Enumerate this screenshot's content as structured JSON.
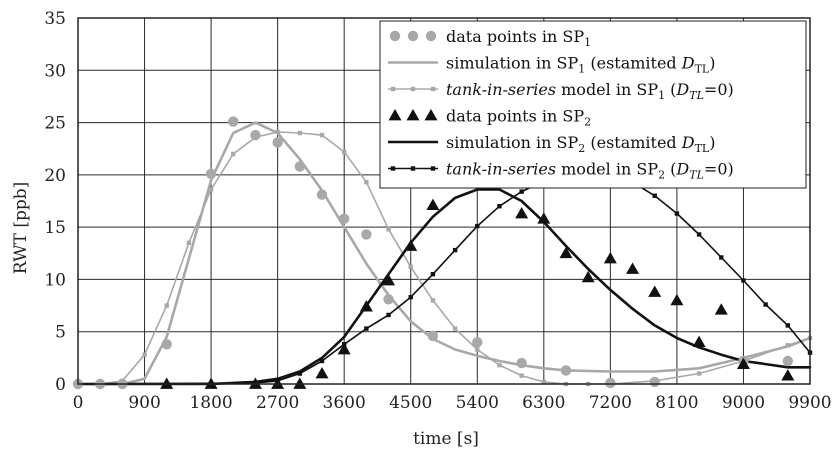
{
  "chart_data": {
    "type": "line",
    "xlabel": "time [s]",
    "ylabel": "RWT [ppb]",
    "xlim": [
      0,
      9900
    ],
    "ylim": [
      0,
      35
    ],
    "xticks": [
      0,
      900,
      1800,
      2700,
      3600,
      4500,
      5400,
      6300,
      7200,
      8100,
      9000,
      9900
    ],
    "yticks": [
      0,
      5,
      10,
      15,
      20,
      25,
      30,
      35
    ],
    "grid": true,
    "legend_position": "top-right",
    "colors": {
      "sp1": "#a8a8a8",
      "sp2": "#111111"
    },
    "series": [
      {
        "name": "data points in SP₁",
        "legend": [
          "data points in SP",
          "1",
          "",
          "",
          ""
        ],
        "style": "markers",
        "marker": "circle",
        "color": "#a8a8a8",
        "x": [
          0,
          300,
          600,
          1200,
          1800,
          2100,
          2400,
          2700,
          3000,
          3300,
          3600,
          3900,
          4200,
          4800,
          5400,
          6000,
          6600,
          7200,
          7800,
          9000,
          9600
        ],
        "y": [
          0,
          0,
          0,
          3.8,
          20.1,
          25.1,
          23.8,
          23.1,
          20.8,
          18.1,
          15.8,
          14.3,
          8.1,
          4.6,
          4.0,
          2.0,
          1.3,
          0.1,
          0.2,
          2.2,
          2.2
        ]
      },
      {
        "name": "simulation in SP₁ (estamited D_TL)",
        "legend": [
          "simulation in SP",
          "1",
          " (estamited ",
          "D",
          "TL",
          ")"
        ],
        "style": "line",
        "color": "#a8a8a8",
        "x": [
          0,
          600,
          900,
          1200,
          1500,
          1800,
          2100,
          2400,
          2700,
          3000,
          3300,
          3600,
          3900,
          4200,
          4500,
          4800,
          5100,
          5400,
          5700,
          6000,
          6300,
          6600,
          7200,
          7800,
          8400,
          9000,
          9600,
          9900
        ],
        "y": [
          0,
          0,
          0.5,
          4.5,
          12.0,
          19.5,
          24.0,
          25.0,
          24.0,
          21.5,
          18.5,
          15.0,
          11.5,
          8.5,
          6.0,
          4.3,
          3.3,
          2.7,
          2.2,
          1.8,
          1.5,
          1.3,
          1.2,
          1.2,
          1.5,
          2.5,
          3.6,
          4.4
        ]
      },
      {
        "name": "tank-in-series model in SP₁ (D_TL=0)",
        "legend": [
          "tank-in-series",
          " model in SP",
          "1",
          "  (",
          "D",
          "TL",
          "=0)"
        ],
        "style": "line-markers",
        "marker": "square",
        "color": "#a8a8a8",
        "x": [
          0,
          300,
          600,
          900,
          1200,
          1500,
          1800,
          2100,
          2400,
          2700,
          3000,
          3300,
          3600,
          3900,
          4200,
          4500,
          4800,
          5100,
          5400,
          5700,
          6000,
          6300,
          6600,
          6900,
          7200,
          7800,
          8400,
          9000,
          9600,
          9900
        ],
        "y": [
          0,
          0,
          0.3,
          2.8,
          7.5,
          13.5,
          18.6,
          22.0,
          23.6,
          24.1,
          24.0,
          23.8,
          22.2,
          19.3,
          14.8,
          11.2,
          8.0,
          5.3,
          3.3,
          1.8,
          0.8,
          0.2,
          0,
          0,
          0,
          0.3,
          1.0,
          2.2,
          3.7,
          4.4
        ]
      },
      {
        "name": "data points in SP₂",
        "legend": [
          "data points in SP",
          "2",
          "",
          "",
          ""
        ],
        "style": "markers",
        "marker": "triangle",
        "color": "#111111",
        "x": [
          1200,
          1800,
          2400,
          2700,
          3000,
          3300,
          3600,
          3900,
          4200,
          4500,
          4800,
          5100,
          5400,
          5700,
          6000,
          6300,
          6600,
          6900,
          7200,
          7500,
          7800,
          8100,
          8400,
          8700,
          9000,
          9600
        ],
        "y": [
          0,
          0,
          0,
          0,
          0,
          1.0,
          3.3,
          7.4,
          9.9,
          13.2,
          17.1,
          19.8,
          19.6,
          19.5,
          16.3,
          15.8,
          12.5,
          10.2,
          12.0,
          11.0,
          8.8,
          8.0,
          4.0,
          7.1,
          1.9,
          0.8
        ]
      },
      {
        "name": "simulation in SP₂ (estamited D_TL)",
        "legend": [
          "simulation in SP",
          "2",
          " (estamited ",
          "D",
          "TL",
          ")"
        ],
        "style": "line",
        "color": "#111111",
        "x": [
          0,
          1800,
          2400,
          2700,
          3000,
          3300,
          3600,
          3900,
          4200,
          4500,
          4800,
          5100,
          5400,
          5700,
          6000,
          6300,
          6600,
          6900,
          7200,
          7500,
          7800,
          8100,
          8400,
          8700,
          9000,
          9300,
          9600,
          9900
        ],
        "y": [
          0,
          0,
          0.2,
          0.5,
          1.2,
          2.5,
          4.5,
          7.5,
          10.5,
          13.5,
          16.0,
          17.8,
          18.6,
          18.6,
          17.5,
          15.5,
          13.2,
          11.0,
          9.0,
          7.2,
          5.6,
          4.4,
          3.5,
          2.8,
          2.2,
          1.9,
          1.6,
          1.6
        ]
      },
      {
        "name": "tank-in-series model in SP₂ (D_TL=0)",
        "legend": [
          "tank-in-series",
          " model in SP",
          "2",
          "  (",
          "D",
          "TL",
          "=0)"
        ],
        "style": "line-markers",
        "marker": "square",
        "color": "#111111",
        "x": [
          0,
          2400,
          2700,
          3000,
          3300,
          3600,
          3900,
          4200,
          4500,
          4800,
          5100,
          5400,
          5700,
          6000,
          6300,
          6600,
          6900,
          7200,
          7500,
          7800,
          8100,
          8400,
          8700,
          9000,
          9300,
          9600,
          9900
        ],
        "y": [
          0,
          0.1,
          0.3,
          1.0,
          2.2,
          3.8,
          5.3,
          6.6,
          8.3,
          10.5,
          12.8,
          15.1,
          17.0,
          18.4,
          19.4,
          19.9,
          20.3,
          20.1,
          19.3,
          18.0,
          16.3,
          14.3,
          12.1,
          9.9,
          7.6,
          5.6,
          3.0
        ]
      }
    ]
  }
}
